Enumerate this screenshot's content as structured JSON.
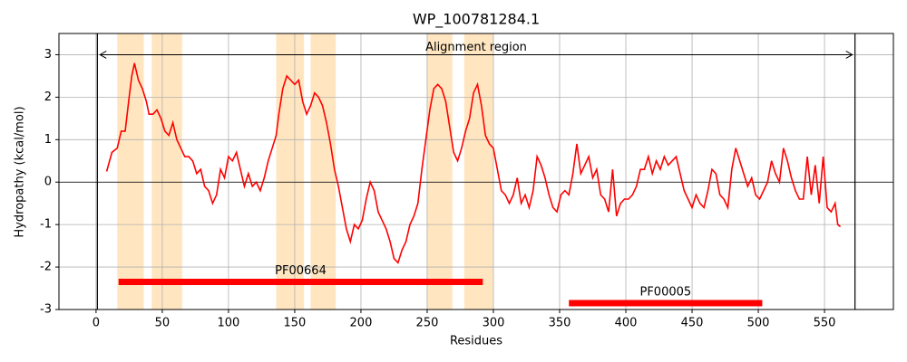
{
  "chart_data": {
    "type": "line",
    "title": "WP_100781284.1",
    "x_label": "Residues",
    "y_label": "Hydropathy (kcal/mol)",
    "color": "#ff0000",
    "grid": true,
    "x": [
      8,
      12,
      16,
      19,
      22,
      25,
      27,
      29,
      32,
      35,
      38,
      40,
      43,
      46,
      49,
      52,
      55,
      58,
      61,
      64,
      67,
      70,
      73,
      76,
      79,
      82,
      85,
      88,
      91,
      94,
      97,
      100,
      103,
      106,
      109,
      112,
      115,
      118,
      121,
      124,
      127,
      130,
      133,
      136,
      138,
      141,
      144,
      147,
      150,
      153,
      156,
      159,
      162,
      165,
      168,
      171,
      174,
      177,
      180,
      183,
      186,
      189,
      192,
      195,
      198,
      201,
      204,
      207,
      210,
      213,
      216,
      219,
      222,
      225,
      228,
      231,
      234,
      237,
      240,
      243,
      246,
      249,
      252,
      255,
      258,
      261,
      264,
      267,
      270,
      273,
      276,
      279,
      282,
      285,
      288,
      291,
      294,
      297,
      300,
      303,
      306,
      309,
      312,
      315,
      318,
      321,
      324,
      327,
      330,
      333,
      336,
      339,
      342,
      345,
      348,
      351,
      354,
      357,
      360,
      363,
      366,
      369,
      372,
      375,
      378,
      381,
      384,
      387,
      390,
      393,
      396,
      399,
      402,
      405,
      408,
      411,
      414,
      417,
      420,
      423,
      426,
      429,
      432,
      435,
      438,
      441,
      444,
      447,
      450,
      453,
      456,
      459,
      462,
      465,
      468,
      471,
      474,
      477,
      480,
      483,
      486,
      489,
      492,
      495,
      498,
      501,
      504,
      507,
      510,
      513,
      516,
      519,
      522,
      525,
      528,
      531,
      534,
      537,
      540,
      543,
      546,
      549,
      552,
      555,
      558,
      560,
      562
    ],
    "values": [
      0.25,
      0.7,
      0.8,
      1.2,
      1.2,
      2.0,
      2.5,
      2.8,
      2.4,
      2.2,
      1.9,
      1.6,
      1.6,
      1.7,
      1.5,
      1.2,
      1.1,
      1.4,
      1.0,
      0.8,
      0.6,
      0.6,
      0.5,
      0.2,
      0.3,
      -0.1,
      -0.2,
      -0.5,
      -0.3,
      0.3,
      0.1,
      0.6,
      0.5,
      0.7,
      0.3,
      -0.1,
      0.2,
      -0.1,
      0.0,
      -0.2,
      0.1,
      0.5,
      0.8,
      1.1,
      1.6,
      2.2,
      2.5,
      2.4,
      2.3,
      2.4,
      1.9,
      1.6,
      1.8,
      2.1,
      2.0,
      1.8,
      1.4,
      0.9,
      0.3,
      -0.1,
      -0.6,
      -1.1,
      -1.4,
      -1.0,
      -1.1,
      -0.9,
      -0.4,
      0.0,
      -0.2,
      -0.7,
      -0.9,
      -1.1,
      -1.4,
      -1.8,
      -1.9,
      -1.6,
      -1.4,
      -1.0,
      -0.8,
      -0.5,
      0.3,
      1.0,
      1.7,
      2.2,
      2.3,
      2.2,
      1.9,
      1.3,
      0.7,
      0.5,
      0.8,
      1.2,
      1.5,
      2.1,
      2.3,
      1.8,
      1.1,
      0.9,
      0.8,
      0.3,
      -0.2,
      -0.3,
      -0.5,
      -0.3,
      0.1,
      -0.5,
      -0.3,
      -0.6,
      -0.2,
      0.6,
      0.4,
      0.1,
      -0.3,
      -0.6,
      -0.7,
      -0.3,
      -0.2,
      -0.3,
      0.2,
      0.9,
      0.2,
      0.4,
      0.6,
      0.1,
      0.3,
      -0.3,
      -0.4,
      -0.7,
      0.3,
      -0.8,
      -0.5,
      -0.4,
      -0.4,
      -0.3,
      -0.1,
      0.3,
      0.3,
      0.6,
      0.2,
      0.5,
      0.3,
      0.6,
      0.4,
      0.5,
      0.6,
      0.2,
      -0.2,
      -0.4,
      -0.6,
      -0.3,
      -0.5,
      -0.6,
      -0.2,
      0.3,
      0.2,
      -0.3,
      -0.4,
      -0.6,
      0.3,
      0.8,
      0.5,
      0.2,
      -0.1,
      0.1,
      -0.3,
      -0.4,
      -0.2,
      0.0,
      0.5,
      0.2,
      0.0,
      0.8,
      0.5,
      0.1,
      -0.2,
      -0.4,
      -0.4,
      0.6,
      -0.3,
      0.4,
      -0.5,
      0.6,
      -0.6,
      -0.7,
      -0.5,
      -1.0,
      -1.05
    ],
    "xlim": [
      -28,
      602
    ],
    "ylim": [
      -3,
      3.5
    ],
    "xticks": [
      0,
      50,
      100,
      150,
      200,
      250,
      300,
      350,
      400,
      450,
      500,
      550
    ],
    "yticks": [
      -3,
      -2,
      -1,
      0,
      1,
      2,
      3
    ],
    "hline": 0,
    "vlines": [
      1,
      573
    ],
    "region_color": "#ffe6c0",
    "regions": [
      [
        16,
        36
      ],
      [
        42,
        65
      ],
      [
        136,
        157
      ],
      [
        162,
        181
      ],
      [
        250,
        269
      ],
      [
        278,
        300
      ]
    ],
    "annotation": {
      "text": "Alignment region",
      "start": 3,
      "end": 571,
      "y": 3
    },
    "domains": [
      {
        "label": "PF00664",
        "start": 17,
        "end": 292,
        "y": -2.35
      },
      {
        "label": "PF00005",
        "start": 357,
        "end": 503,
        "y": -2.85
      }
    ]
  }
}
